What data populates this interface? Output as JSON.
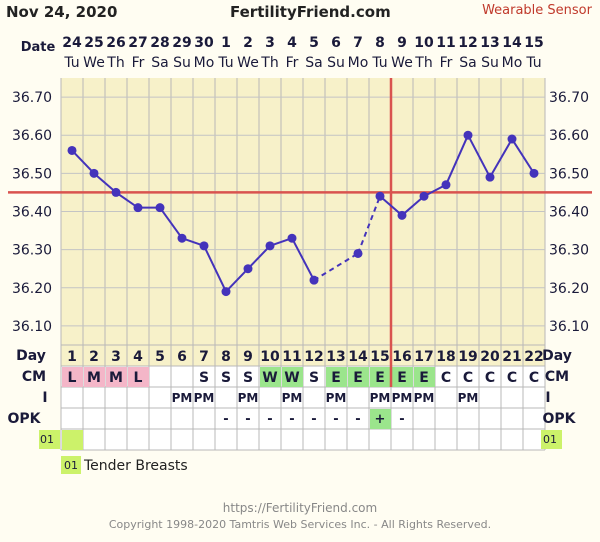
{
  "header": {
    "chart_date": "Nov 24, 2020",
    "brand": "FertilityFriend.com",
    "sensor_label": "Wearable Sensor"
  },
  "row_labels": {
    "date": "Date",
    "day": "Day",
    "cm": "CM",
    "intercourse": "I",
    "opk": "OPK"
  },
  "chart_data": {
    "type": "line",
    "dates": [
      "24",
      "25",
      "26",
      "27",
      "28",
      "29",
      "30",
      "1",
      "2",
      "3",
      "4",
      "5",
      "6",
      "7",
      "8",
      "9",
      "10",
      "11",
      "12",
      "13",
      "14",
      "15"
    ],
    "weekdays": [
      "Tu",
      "We",
      "Th",
      "Fr",
      "Sa",
      "Su",
      "Mo",
      "Tu",
      "We",
      "Th",
      "Fr",
      "Sa",
      "Su",
      "Mo",
      "Tu",
      "We",
      "Th",
      "Fr",
      "Sa",
      "Su",
      "Mo",
      "Tu"
    ],
    "cycle_days": [
      "1",
      "2",
      "3",
      "4",
      "5",
      "6",
      "7",
      "8",
      "9",
      "10",
      "11",
      "12",
      "13",
      "14",
      "15",
      "16",
      "17",
      "18",
      "19",
      "20",
      "21",
      "22"
    ],
    "temperatures": [
      36.56,
      36.5,
      36.45,
      36.41,
      36.41,
      36.33,
      36.31,
      36.19,
      36.25,
      36.31,
      36.33,
      36.22,
      null,
      36.29,
      36.44,
      36.39,
      36.44,
      36.47,
      36.6,
      36.49,
      36.59,
      36.5
    ],
    "y_tick_labels": [
      "36.10",
      "36.20",
      "36.30",
      "36.40",
      "36.50",
      "36.60",
      "36.70"
    ],
    "ylim": [
      36.05,
      36.75
    ],
    "coverline": 36.45,
    "ovulation_cycle_day": 16,
    "dashed_segments": [
      [
        11,
        13
      ],
      [
        13,
        14
      ]
    ],
    "grid": true,
    "series_color": "#4433bb",
    "coverline_color": "#d9534f",
    "cm": [
      "L",
      "M",
      "M",
      "L",
      "",
      "",
      "S",
      "S",
      "S",
      "W",
      "W",
      "S",
      "E",
      "E",
      "E",
      "E",
      "E",
      "C",
      "C",
      "C",
      "C",
      "C"
    ],
    "cm_colors": {
      "L": "#f4b6c8",
      "M": "#f4b6c8",
      "W": "#9be58c",
      "E": "#9be58c"
    },
    "intercourse": [
      "",
      "",
      "",
      "",
      "",
      "PM",
      "PM",
      "",
      "PM",
      "",
      "PM",
      "",
      "PM",
      "",
      "PM",
      "PM",
      "PM",
      "",
      "PM",
      "",
      "",
      ""
    ],
    "opk": [
      "",
      "",
      "",
      "",
      "",
      "",
      "",
      "-",
      "-",
      "-",
      "-",
      "-",
      "-",
      "-",
      "+",
      "-",
      "",
      "",
      "",
      "",
      "",
      ""
    ],
    "opk_positive_color": "#9be58c",
    "note_marker": "01",
    "note_marker_color": "#ccf26a",
    "note_text": "Tender Breasts"
  },
  "footer": {
    "url": "https://FertilityFriend.com",
    "copyright": "Copyright 1998-2020 Tamtris Web Services Inc. - All Rights Reserved."
  }
}
